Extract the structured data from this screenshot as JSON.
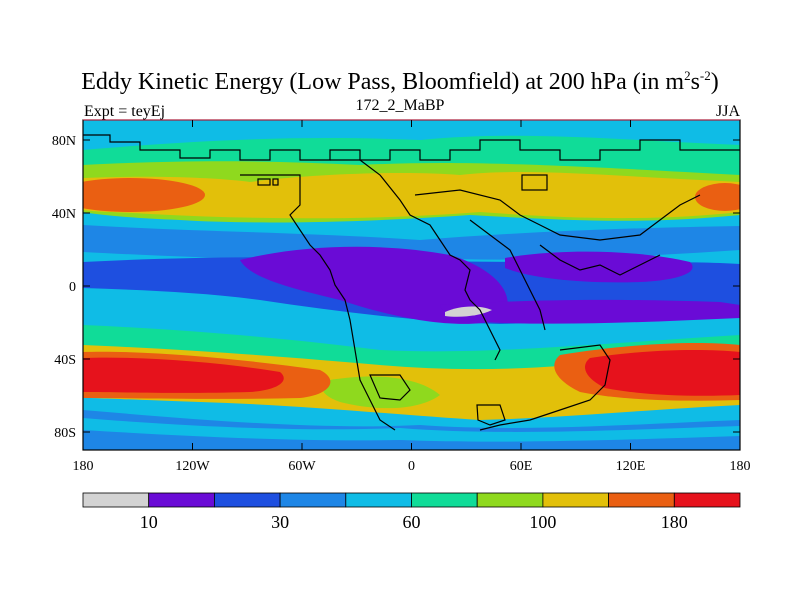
{
  "title": {
    "main": "Eddy Kinetic Energy (Low Pass, Bloomfield) at 200 hPa (in m",
    "sup1": "2",
    "mid": "s",
    "sup2": "-2",
    "end": ")"
  },
  "subtitle_left": "Expt = teyEj",
  "subtitle_center": "172_2_MaBP",
  "subtitle_right": "JJA",
  "map": {
    "lat_ticks": [
      "80N",
      "40N",
      "0",
      "40S",
      "80S"
    ],
    "lon_ticks": [
      "180",
      "120W",
      "60W",
      "0",
      "60E",
      "120E",
      "180"
    ]
  },
  "colorbar": {
    "colors": [
      "#d3d3d3",
      "#6a0bd6",
      "#1e4fe0",
      "#1e86e6",
      "#0fbce6",
      "#10dc98",
      "#8fd91e",
      "#e2c00a",
      "#ea5f12",
      "#e6121c"
    ],
    "labels": [
      "10",
      "30",
      "60",
      "100",
      "180"
    ]
  }
}
